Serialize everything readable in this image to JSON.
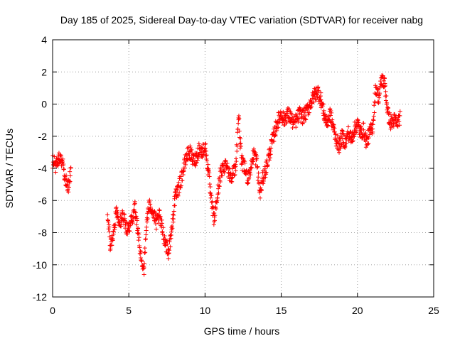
{
  "chart_data": {
    "type": "scatter",
    "title": "Day 185 of 2025, Sidereal Day-to-day VTEC variation (SDTVAR) for receiver nabg",
    "xlabel": "GPS time / hours",
    "ylabel": "SDTVAR / TECUs",
    "xlim": [
      0,
      25
    ],
    "ylim": [
      -12,
      4
    ],
    "x_ticks": [
      0,
      5,
      10,
      15,
      20,
      25
    ],
    "y_ticks": [
      -12,
      -10,
      -8,
      -6,
      -4,
      -2,
      0,
      2,
      4
    ],
    "x_tick_labels": [
      "0",
      "5",
      "10",
      "15",
      "20",
      "25"
    ],
    "y_tick_labels": [
      "-12",
      "-10",
      "-8",
      "-6",
      "-4",
      "-2",
      "0",
      "2",
      "4"
    ],
    "grid": true,
    "marker": "+",
    "series": [
      {
        "name": "SDTVAR",
        "color": "#ff0000",
        "trend": [
          [
            0.0,
            -3.6
          ],
          [
            0.2,
            -3.8
          ],
          [
            0.4,
            -3.4
          ],
          [
            0.6,
            -3.5
          ],
          [
            0.8,
            -4.5
          ],
          [
            1.0,
            -5.2
          ],
          [
            1.2,
            -4.3
          ],
          [
            3.6,
            -7.2
          ],
          [
            3.8,
            -8.8
          ],
          [
            4.0,
            -8.0
          ],
          [
            4.2,
            -6.6
          ],
          [
            4.4,
            -7.4
          ],
          [
            4.6,
            -7.0
          ],
          [
            4.8,
            -7.6
          ],
          [
            5.0,
            -7.8
          ],
          [
            5.2,
            -7.2
          ],
          [
            5.4,
            -6.4
          ],
          [
            5.6,
            -8.0
          ],
          [
            5.8,
            -9.6
          ],
          [
            6.0,
            -10.2
          ],
          [
            6.2,
            -7.0
          ],
          [
            6.4,
            -6.2
          ],
          [
            6.6,
            -6.8
          ],
          [
            6.8,
            -7.4
          ],
          [
            7.0,
            -7.0
          ],
          [
            7.2,
            -7.8
          ],
          [
            7.4,
            -8.6
          ],
          [
            7.6,
            -9.2
          ],
          [
            7.8,
            -8.0
          ],
          [
            8.0,
            -6.0
          ],
          [
            8.2,
            -5.4
          ],
          [
            8.4,
            -4.8
          ],
          [
            8.6,
            -4.0
          ],
          [
            8.8,
            -3.2
          ],
          [
            9.0,
            -3.0
          ],
          [
            9.2,
            -3.5
          ],
          [
            9.4,
            -3.4
          ],
          [
            9.6,
            -2.8
          ],
          [
            9.8,
            -3.0
          ],
          [
            10.0,
            -2.6
          ],
          [
            10.2,
            -4.0
          ],
          [
            10.4,
            -6.0
          ],
          [
            10.6,
            -7.2
          ],
          [
            10.8,
            -5.8
          ],
          [
            11.0,
            -4.4
          ],
          [
            11.2,
            -4.0
          ],
          [
            11.4,
            -3.6
          ],
          [
            11.6,
            -4.4
          ],
          [
            11.8,
            -4.4
          ],
          [
            12.0,
            -4.0
          ],
          [
            12.2,
            -0.8
          ],
          [
            12.4,
            -3.6
          ],
          [
            12.6,
            -4.0
          ],
          [
            12.8,
            -4.6
          ],
          [
            13.0,
            -4.0
          ],
          [
            13.2,
            -3.0
          ],
          [
            13.4,
            -3.6
          ],
          [
            13.6,
            -5.6
          ],
          [
            13.8,
            -4.6
          ],
          [
            14.0,
            -4.0
          ],
          [
            14.2,
            -3.2
          ],
          [
            14.4,
            -2.4
          ],
          [
            14.6,
            -1.6
          ],
          [
            14.8,
            -1.0
          ],
          [
            15.0,
            -0.6
          ],
          [
            15.2,
            -1.0
          ],
          [
            15.4,
            -0.6
          ],
          [
            15.6,
            -0.8
          ],
          [
            15.8,
            -1.2
          ],
          [
            16.0,
            -1.0
          ],
          [
            16.2,
            -0.6
          ],
          [
            16.4,
            -0.8
          ],
          [
            16.6,
            -0.6
          ],
          [
            16.8,
            -0.2
          ],
          [
            17.0,
            0.2
          ],
          [
            17.2,
            0.6
          ],
          [
            17.4,
            0.8
          ],
          [
            17.6,
            0.3
          ],
          [
            17.8,
            -0.6
          ],
          [
            18.0,
            -1.2
          ],
          [
            18.2,
            -0.6
          ],
          [
            18.4,
            -1.4
          ],
          [
            18.6,
            -2.2
          ],
          [
            18.8,
            -2.6
          ],
          [
            19.0,
            -2.0
          ],
          [
            19.2,
            -2.4
          ],
          [
            19.4,
            -1.8
          ],
          [
            19.6,
            -2.2
          ],
          [
            19.8,
            -1.6
          ],
          [
            20.0,
            -1.2
          ],
          [
            20.2,
            -1.8
          ],
          [
            20.4,
            -1.6
          ],
          [
            20.6,
            -2.4
          ],
          [
            20.8,
            -1.8
          ],
          [
            21.0,
            -1.4
          ],
          [
            21.2,
            1.0
          ],
          [
            21.4,
            0.4
          ],
          [
            21.6,
            1.6
          ],
          [
            21.8,
            1.2
          ],
          [
            22.0,
            -0.6
          ],
          [
            22.2,
            -1.2
          ],
          [
            22.4,
            -1.0
          ],
          [
            22.6,
            -1.2
          ],
          [
            22.8,
            -0.8
          ]
        ],
        "scatter_amplitude_tecu": 0.45,
        "point_step_hours": 0.018
      }
    ]
  }
}
